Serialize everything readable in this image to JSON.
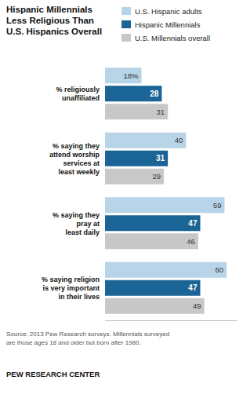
{
  "chart_data": {
    "type": "bar",
    "orientation": "horizontal",
    "title": "Hispanic Millennials\nLess Religious Than\nU.S. Hispanics Overall",
    "categories": [
      "% religiously\nunaffiliated",
      "% saying they\nattend worship\nservices at\nleast weekly",
      "% saying they\npray at\nleast daily",
      "% saying religion\nis very important\nin their lives"
    ],
    "series": [
      {
        "name": "U.S. Hispanic adults",
        "color": "#b8d4e8",
        "values": [
          18,
          40,
          59,
          60
        ],
        "value_labels": [
          "18%",
          "40",
          "59",
          "60"
        ]
      },
      {
        "name": "Hispanic Millennials",
        "color": "#1a6496",
        "values": [
          28,
          31,
          47,
          47
        ]
      },
      {
        "name": "U.S. Millennials overall",
        "color": "#c8c8c8",
        "values": [
          31,
          29,
          46,
          49
        ]
      }
    ],
    "xlim": [
      0,
      65
    ],
    "data_labels": true,
    "tick_labels": "y",
    "grid": false,
    "legend": "upper right",
    "annotations": [
      "Source: 2013 Pew Research surveys. Millennials surveyed\nare those ages 18 and older but born after 1980.",
      "PEW RESEARCH CENTER"
    ]
  }
}
